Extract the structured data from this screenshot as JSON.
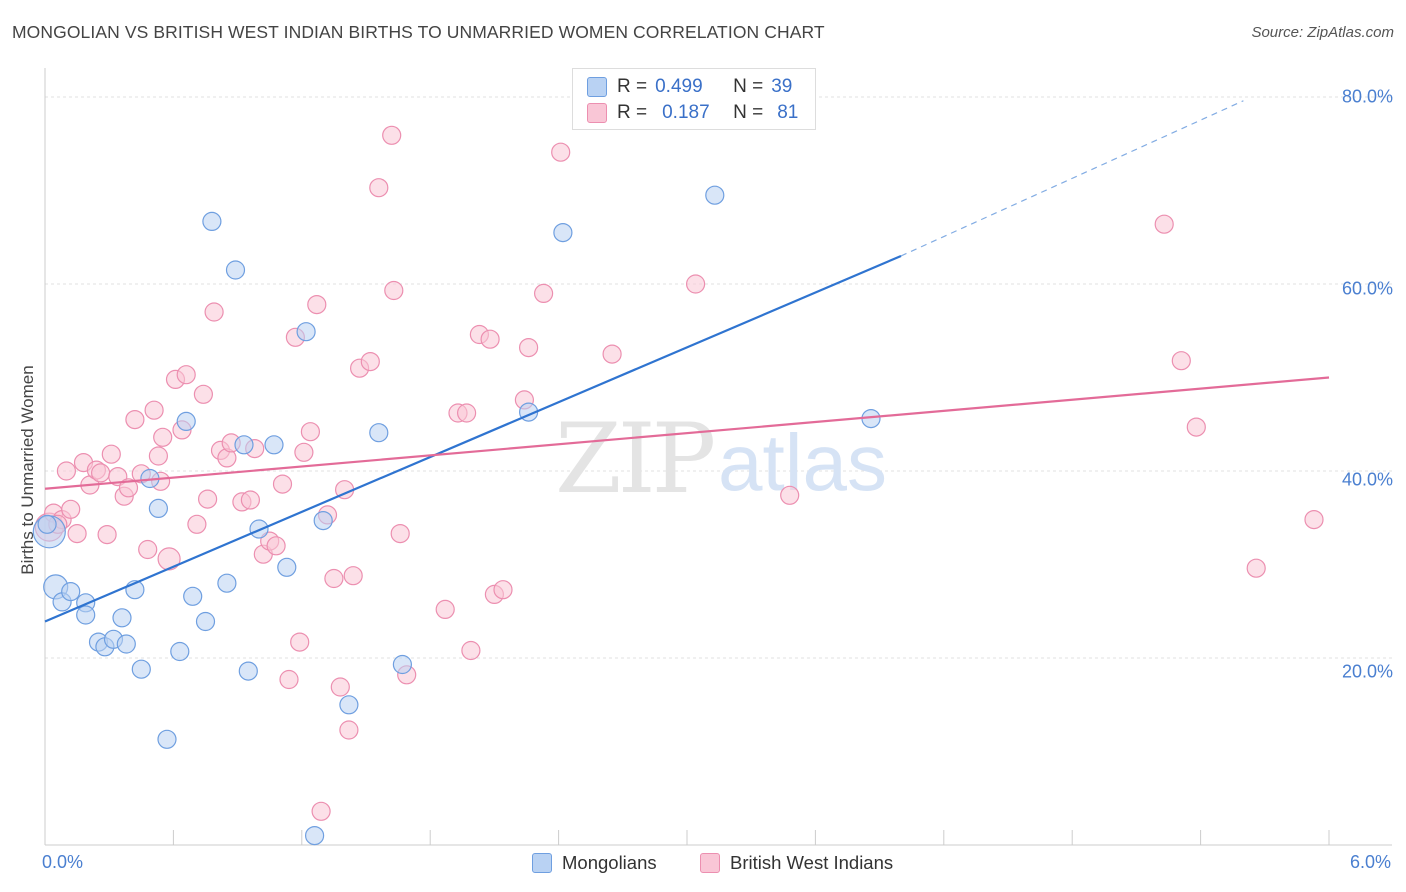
{
  "title": "MONGOLIAN VS BRITISH WEST INDIAN BIRTHS TO UNMARRIED WOMEN CORRELATION CHART",
  "source": "Source: ZipAtlas.com",
  "watermark": {
    "zip": "ZIP",
    "atlas": "atlas"
  },
  "legend_stats": {
    "r_label": "R =",
    "n_label": "N =",
    "rows": [
      {
        "r": "0.499",
        "n": "39",
        "fill": "#b9d2f3",
        "stroke": "#6f9fe0"
      },
      {
        "r": "0.187",
        "n": "81",
        "fill": "#f9c6d6",
        "stroke": "#ec8fb0"
      }
    ]
  },
  "chart_data": {
    "type": "scatter",
    "title": "MONGOLIAN VS BRITISH WEST INDIAN BIRTHS TO UNMARRIED WOMEN CORRELATION CHART",
    "xlabel": "",
    "ylabel": "Births to Unmarried Women",
    "xlim": [
      0,
      6
    ],
    "ylim": [
      0,
      80
    ],
    "x_tick_labels": [
      "0.0%",
      "6.0%"
    ],
    "y_ticks": [
      20,
      40,
      60,
      80
    ],
    "y_tick_labels": [
      "20.0%",
      "40.0%",
      "60.0%",
      "80.0%"
    ],
    "legend_position": "bottom",
    "series": [
      {
        "name": "Mongolians",
        "color": "#6f9fe0",
        "fill": "#b9d2f3",
        "trend": {
          "x0": 0,
          "y0": 23.9,
          "x1": 4.0,
          "y1": 63.0,
          "dash_to_x": 5.6,
          "dash_to_y": 79.6,
          "color": "#2f74d0"
        },
        "points": [
          [
            0.02,
            33.5,
            16
          ],
          [
            0.05,
            27.6,
            12
          ],
          [
            0.08,
            26.0,
            9
          ],
          [
            0.12,
            27.1,
            9
          ],
          [
            0.19,
            25.9,
            9
          ],
          [
            0.19,
            24.6,
            9
          ],
          [
            0.25,
            21.7,
            9
          ],
          [
            0.28,
            21.2,
            9
          ],
          [
            0.32,
            22.0,
            9
          ],
          [
            0.36,
            24.3,
            9
          ],
          [
            0.38,
            21.5,
            9
          ],
          [
            0.42,
            27.3,
            9
          ],
          [
            0.45,
            18.8,
            9
          ],
          [
            0.49,
            39.2,
            9
          ],
          [
            0.53,
            36.0,
            9
          ],
          [
            0.57,
            11.3,
            9
          ],
          [
            0.63,
            20.7,
            9
          ],
          [
            0.66,
            45.3,
            9
          ],
          [
            0.69,
            26.6,
            9
          ],
          [
            0.75,
            23.9,
            9
          ],
          [
            0.78,
            66.7,
            9
          ],
          [
            0.85,
            28.0,
            9
          ],
          [
            0.89,
            61.5,
            9
          ],
          [
            0.93,
            42.8,
            9
          ],
          [
            0.95,
            18.6,
            9
          ],
          [
            1.0,
            33.8,
            9
          ],
          [
            1.07,
            42.8,
            9
          ],
          [
            1.13,
            29.7,
            9
          ],
          [
            1.22,
            54.9,
            9
          ],
          [
            1.26,
            1.0,
            9
          ],
          [
            1.3,
            34.7,
            9
          ],
          [
            1.42,
            15.0,
            9
          ],
          [
            1.56,
            44.1,
            9
          ],
          [
            1.67,
            19.3,
            9
          ],
          [
            2.26,
            46.3,
            9
          ],
          [
            2.42,
            65.5,
            9
          ],
          [
            3.13,
            69.5,
            9
          ],
          [
            3.86,
            45.6,
            9
          ],
          [
            0.01,
            34.3,
            9
          ]
        ]
      },
      {
        "name": "British West Indians",
        "color": "#ec8fb0",
        "fill": "#f9c6d6",
        "trend": {
          "x0": 0,
          "y0": 38.1,
          "x1": 6.0,
          "y1": 50.0,
          "color": "#e36b98"
        },
        "points": [
          [
            0.02,
            34.0,
            14
          ],
          [
            0.04,
            35.5,
            9
          ],
          [
            0.08,
            34.8,
            9
          ],
          [
            0.12,
            35.9,
            9
          ],
          [
            0.15,
            33.3,
            9
          ],
          [
            0.18,
            40.9,
            9
          ],
          [
            0.21,
            38.5,
            9
          ],
          [
            0.24,
            40.1,
            9
          ],
          [
            0.26,
            39.8,
            9
          ],
          [
            0.29,
            33.2,
            9
          ],
          [
            0.31,
            41.8,
            9
          ],
          [
            0.34,
            39.4,
            9
          ],
          [
            0.37,
            37.3,
            9
          ],
          [
            0.39,
            38.2,
            9
          ],
          [
            0.42,
            45.5,
            9
          ],
          [
            0.45,
            39.7,
            9
          ],
          [
            0.48,
            31.6,
            9
          ],
          [
            0.51,
            46.5,
            9
          ],
          [
            0.53,
            41.6,
            9
          ],
          [
            0.54,
            38.9,
            9
          ],
          [
            0.55,
            43.6,
            9
          ],
          [
            0.58,
            30.6,
            11
          ],
          [
            0.61,
            49.8,
            9
          ],
          [
            0.64,
            44.4,
            9
          ],
          [
            0.66,
            50.3,
            9
          ],
          [
            0.71,
            34.3,
            9
          ],
          [
            0.74,
            48.2,
            9
          ],
          [
            0.76,
            37.0,
            9
          ],
          [
            0.79,
            57.0,
            9
          ],
          [
            0.82,
            42.2,
            9
          ],
          [
            0.85,
            41.4,
            9
          ],
          [
            0.87,
            43.0,
            9
          ],
          [
            0.92,
            36.7,
            9
          ],
          [
            0.96,
            36.9,
            9
          ],
          [
            0.98,
            42.4,
            9
          ],
          [
            1.02,
            31.1,
            9
          ],
          [
            1.05,
            32.5,
            9
          ],
          [
            1.08,
            32.0,
            9
          ],
          [
            1.11,
            38.6,
            9
          ],
          [
            1.14,
            17.7,
            9
          ],
          [
            1.17,
            54.3,
            9
          ],
          [
            1.19,
            21.7,
            9
          ],
          [
            1.21,
            42.0,
            9
          ],
          [
            1.24,
            44.2,
            9
          ],
          [
            1.27,
            57.8,
            9
          ],
          [
            1.29,
            3.6,
            9
          ],
          [
            1.32,
            35.3,
            9
          ],
          [
            1.35,
            28.5,
            9
          ],
          [
            1.38,
            16.9,
            9
          ],
          [
            1.4,
            38.0,
            9
          ],
          [
            1.42,
            12.3,
            9
          ],
          [
            1.44,
            28.8,
            9
          ],
          [
            1.47,
            51.0,
            9
          ],
          [
            1.52,
            51.7,
            9
          ],
          [
            1.56,
            70.3,
            9
          ],
          [
            1.62,
            75.9,
            9
          ],
          [
            1.63,
            59.3,
            9
          ],
          [
            1.66,
            33.3,
            9
          ],
          [
            1.69,
            18.2,
            9
          ],
          [
            1.87,
            25.2,
            9
          ],
          [
            1.93,
            46.2,
            9
          ],
          [
            1.97,
            46.2,
            9
          ],
          [
            1.99,
            20.8,
            9
          ],
          [
            2.03,
            54.6,
            9
          ],
          [
            2.08,
            54.1,
            9
          ],
          [
            2.1,
            26.8,
            9
          ],
          [
            2.14,
            27.3,
            9
          ],
          [
            2.24,
            47.6,
            9
          ],
          [
            2.26,
            53.2,
            9
          ],
          [
            2.33,
            59.0,
            9
          ],
          [
            2.41,
            74.1,
            9
          ],
          [
            2.65,
            52.5,
            9
          ],
          [
            3.04,
            60.0,
            9
          ],
          [
            3.48,
            37.4,
            9
          ],
          [
            5.23,
            66.4,
            9
          ],
          [
            5.31,
            51.8,
            9
          ],
          [
            5.38,
            44.7,
            9
          ],
          [
            5.66,
            29.6,
            9
          ],
          [
            5.93,
            34.8,
            9
          ],
          [
            0.06,
            34.3,
            9
          ],
          [
            0.1,
            40.0,
            9
          ]
        ]
      }
    ]
  }
}
